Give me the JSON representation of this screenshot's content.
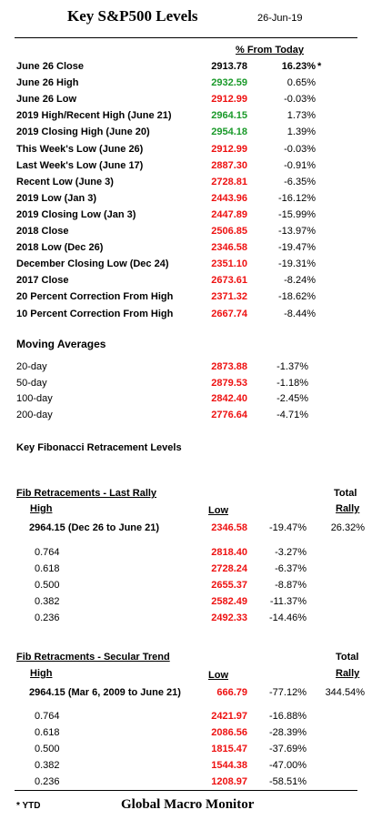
{
  "header": {
    "title": "Key S&P500 Levels",
    "date": "26-Jun-19",
    "pct_header": "% From Today"
  },
  "levels": [
    {
      "label": "June 26 Close",
      "value": "2913.78",
      "pct": "16.23%",
      "mark": "*",
      "color": "black",
      "pct_bold": true
    },
    {
      "label": "June 26 High",
      "value": "2932.59",
      "pct": "0.65%",
      "color": "green"
    },
    {
      "label": "June 26 Low",
      "value": "2912.99",
      "pct": "-0.03%",
      "color": "red"
    },
    {
      "label": "2019 High/Recent High (June 21)",
      "value": "2964.15",
      "pct": "1.73%",
      "color": "green"
    },
    {
      "label": "2019 Closing High  (June 20)",
      "value": "2954.18",
      "pct": "1.39%",
      "color": "green"
    },
    {
      "label": "This Week's Low (June 26)",
      "value": "2912.99",
      "pct": "-0.03%",
      "color": "red"
    },
    {
      "label": "Last Week's Low (June 17)",
      "value": "2887.30",
      "pct": "-0.91%",
      "color": "red"
    },
    {
      "label": "Recent Low (June 3)",
      "value": "2728.81",
      "pct": "-6.35%",
      "color": "red"
    },
    {
      "label": "2019 Low  (Jan 3)",
      "value": "2443.96",
      "pct": "-16.12%",
      "color": "red"
    },
    {
      "label": "2019 Closing Low (Jan 3)",
      "value": "2447.89",
      "pct": "-15.99%",
      "color": "red"
    },
    {
      "label": "2018 Close",
      "value": "2506.85",
      "pct": "-13.97%",
      "color": "red"
    },
    {
      "label": "2018 Low (Dec 26)",
      "value": "2346.58",
      "pct": "-19.47%",
      "color": "red"
    },
    {
      "label": "December Closing Low (Dec 24)",
      "value": "2351.10",
      "pct": "-19.31%",
      "color": "red"
    },
    {
      "label": "2017 Close",
      "value": "2673.61",
      "pct": "-8.24%",
      "color": "red"
    },
    {
      "label": "20 Percent Correction From High",
      "value": "2371.32",
      "pct": "-18.62%",
      "color": "red"
    },
    {
      "label": "10 Percent Correction From High",
      "value": "2667.74",
      "pct": "-8.44%",
      "color": "red"
    }
  ],
  "moving_averages": {
    "heading": "Moving Averages",
    "rows": [
      {
        "label": "20-day",
        "value": "2873.88",
        "pct": "-1.37%"
      },
      {
        "label": "50-day",
        "value": "2879.53",
        "pct": "-1.18%"
      },
      {
        "label": "100-day",
        "value": "2842.40",
        "pct": "-2.45%"
      },
      {
        "label": "200-day",
        "value": "2776.64",
        "pct": "-4.71%"
      }
    ]
  },
  "fib_heading": "Key Fibonacci Retracement Levels",
  "fib_last_rally": {
    "heading": "Fib Retracements - Last Rally",
    "total_label": "Total",
    "high_label": "High",
    "low_label": "Low",
    "rally_label": "Rally",
    "main": {
      "label": "2964.15  (Dec 26 to June 21)",
      "value": "2346.58",
      "pct": "-19.47%",
      "total": "26.32%"
    },
    "rows": [
      {
        "label": "0.764",
        "value": "2818.40",
        "pct": "-3.27%"
      },
      {
        "label": "0.618",
        "value": "2728.24",
        "pct": "-6.37%"
      },
      {
        "label": "0.500",
        "value": "2655.37",
        "pct": "-8.87%"
      },
      {
        "label": "0.382",
        "value": "2582.49",
        "pct": "-11.37%"
      },
      {
        "label": "0.236",
        "value": "2492.33",
        "pct": "-14.46%"
      }
    ]
  },
  "fib_secular": {
    "heading": "Fib Retracments - Secular Trend",
    "total_label": "Total",
    "high_label": "High",
    "low_label": "Low",
    "rally_label": "Rally",
    "main": {
      "label": "2964.15  (Mar 6, 2009  to June 21)",
      "value": "666.79",
      "pct": "-77.12%",
      "total": "344.54%"
    },
    "rows": [
      {
        "label": "0.764",
        "value": "2421.97",
        "pct": "-16.88%"
      },
      {
        "label": "0.618",
        "value": "2086.56",
        "pct": "-28.39%"
      },
      {
        "label": "0.500",
        "value": "1815.47",
        "pct": "-37.69%"
      },
      {
        "label": "0.382",
        "value": "1544.38",
        "pct": "-47.00%"
      },
      {
        "label": "0.236",
        "value": "1208.97",
        "pct": "-58.51%"
      }
    ]
  },
  "footer": {
    "note": "* YTD",
    "brand": "Global Macro Monitor"
  },
  "colors": {
    "red": "#ee1111",
    "green": "#1a9a2a",
    "black": "#000000"
  }
}
